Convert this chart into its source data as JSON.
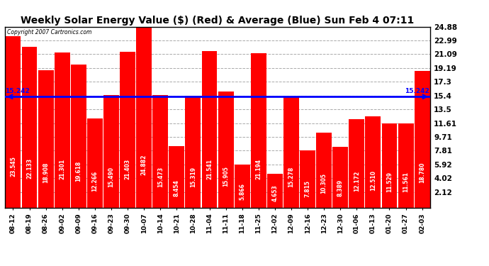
{
  "title": "Weekly Solar Energy Value ($) (Red) & Average (Blue) Sun Feb 4 07:11",
  "copyright": "Copyright 2007 Cartronics.com",
  "categories": [
    "08-12",
    "08-19",
    "08-26",
    "09-02",
    "09-09",
    "09-16",
    "09-23",
    "09-30",
    "10-07",
    "10-14",
    "10-21",
    "10-28",
    "11-04",
    "11-11",
    "11-18",
    "11-25",
    "12-02",
    "12-09",
    "12-16",
    "12-23",
    "12-30",
    "01-06",
    "01-13",
    "01-20",
    "01-27",
    "02-03"
  ],
  "values": [
    23.545,
    22.133,
    18.908,
    21.301,
    19.618,
    12.266,
    15.49,
    21.403,
    24.882,
    15.473,
    8.454,
    15.319,
    21.541,
    15.905,
    5.866,
    21.194,
    4.653,
    15.278,
    7.815,
    10.305,
    8.389,
    12.172,
    12.51,
    11.529,
    11.561,
    18.78
  ],
  "average": 15.242,
  "yticks": [
    2.12,
    4.02,
    5.92,
    7.81,
    9.71,
    11.61,
    13.5,
    15.4,
    17.3,
    19.19,
    21.09,
    22.99,
    24.88
  ],
  "ymin": 0.0,
  "ymax": 24.88,
  "bar_color": "#ff0000",
  "avg_line_color": "#0000ff",
  "bg_color": "#ffffff",
  "plot_bg_color": "#ffffff",
  "grid_color": "#aaaaaa",
  "bar_text_color": "#ffffff",
  "title_fontsize": 10,
  "bar_label_fontsize": 5.5,
  "ytick_fontsize": 7.5,
  "xtick_fontsize": 6.5
}
